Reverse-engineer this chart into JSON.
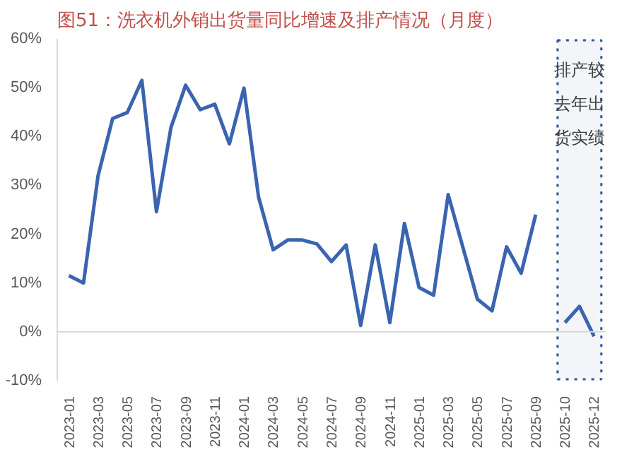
{
  "chart_data": {
    "type": "line",
    "title": "图51：洗衣机外销出货量同比增速及排产情况（月度）",
    "categories": [
      "2023-01",
      null,
      "2023-03",
      null,
      "2023-05",
      null,
      "2023-07",
      null,
      "2023-09",
      null,
      "2023-11",
      null,
      "2024-01",
      null,
      "2024-03",
      null,
      "2024-05",
      null,
      "2024-07",
      null,
      "2024-09",
      null,
      "2024-11",
      null,
      "2025-01",
      null,
      "2025-03",
      null,
      "2025-05",
      null,
      "2025-07",
      null,
      "2025-09",
      null,
      "2025-10",
      null,
      "2025-12"
    ],
    "series": [
      {
        "color": "#3a64b0",
        "values": [
          11.5,
          10,
          32,
          43.7,
          44.9,
          51.5,
          24.6,
          41.9,
          50.5,
          45.5,
          46.6,
          38.5,
          49.9,
          27.6,
          16.8,
          18.8,
          18.8,
          18,
          14.4,
          17.8,
          1.3,
          17.8,
          1.9,
          22.2,
          9.1,
          7.5,
          28.1,
          17.4,
          6.7,
          4.3,
          17.4,
          12,
          24,
          null,
          1.9,
          5.2,
          -0.9
        ]
      }
    ],
    "ylim": [
      -10,
      60
    ],
    "yticks": [
      {
        "value": -10,
        "label": "-10%"
      },
      {
        "value": 0,
        "label": "0%"
      },
      {
        "value": 10,
        "label": "10%"
      },
      {
        "value": 20,
        "label": "20%"
      },
      {
        "value": 30,
        "label": "30%"
      },
      {
        "value": 40,
        "label": "40%"
      },
      {
        "value": 50,
        "label": "50%"
      },
      {
        "value": 60,
        "label": "60%"
      }
    ],
    "ref_lines": [
      {
        "axis": "y",
        "value": 0,
        "color": "#d9d9d9"
      }
    ],
    "bands": [
      {
        "axis": "x",
        "from": "2025-10",
        "to": "2025-12",
        "label": "排产较去年出货实绩",
        "color": "#2f5597"
      }
    ],
    "grid": false,
    "marker": "none",
    "line_style": "solid"
  }
}
